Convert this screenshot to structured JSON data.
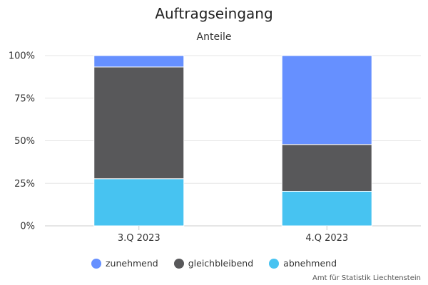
{
  "chart_data": {
    "type": "bar",
    "stacked": true,
    "percent": true,
    "title": "Auftragseingang",
    "subtitle": "Anteile",
    "categories": [
      "3.Q 2023",
      "4.Q 2023"
    ],
    "series": [
      {
        "name": "zunehmend",
        "color": "#6690FF",
        "values": [
          6.7,
          52.2
        ]
      },
      {
        "name": "gleichbleibend",
        "color": "#58585A",
        "values": [
          65.6,
          27.5
        ]
      },
      {
        "name": "abnehmend",
        "color": "#47C3F1",
        "values": [
          27.7,
          20.3
        ]
      }
    ],
    "yaxis": {
      "min": 0,
      "max": 100,
      "ticks": [
        0,
        25,
        50,
        75,
        100
      ],
      "tick_labels": [
        "0%",
        "25%",
        "50%",
        "75%",
        "100%"
      ]
    },
    "grid": true,
    "legend_position": "bottom-center"
  },
  "credits": "Amt für Statistik Liechtenstein"
}
